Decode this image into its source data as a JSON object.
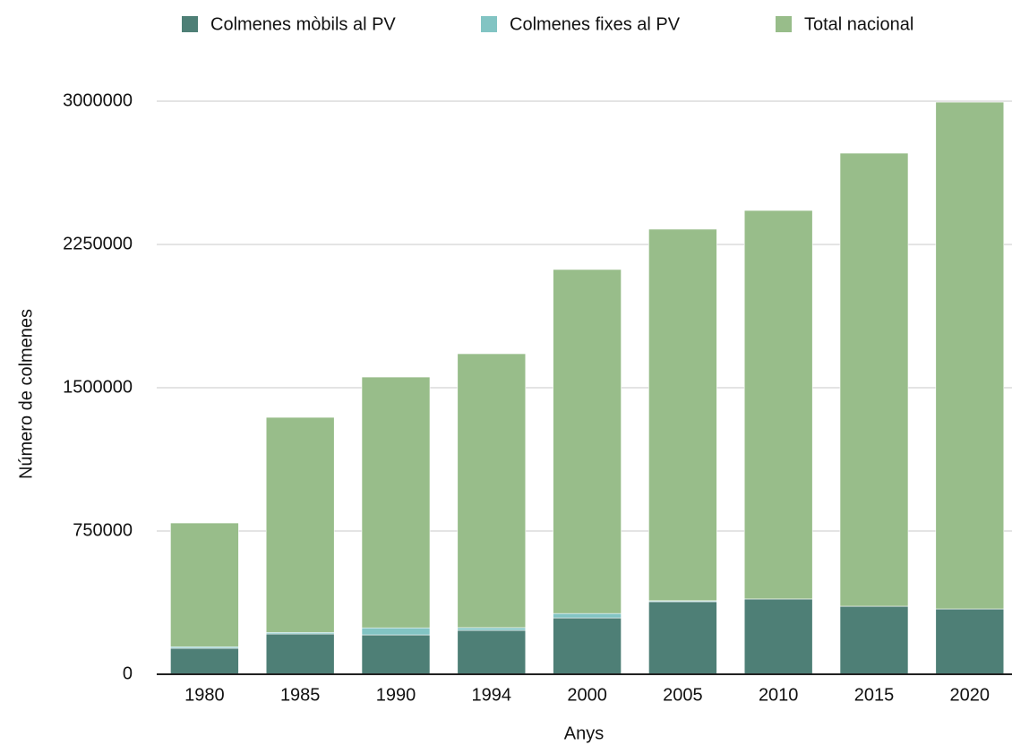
{
  "chart_data": {
    "type": "stacked_bar",
    "x_label": "Anys",
    "y_label": "Número de colmenes",
    "categories": [
      "1980",
      "1985",
      "1990",
      "1994",
      "2000",
      "2005",
      "2010",
      "2015",
      "2020"
    ],
    "series": [
      {
        "name": "Colmenes mòbils al PV",
        "color": "#4e7f76",
        "values": [
          136000,
          211000,
          206000,
          230000,
          295000,
          380000,
          394000,
          356000,
          342000
        ]
      },
      {
        "name": "Colmenes fixes al PV",
        "color": "#82c4c3",
        "values": [
          8000,
          8000,
          37000,
          14000,
          23000,
          5000,
          0,
          0,
          0
        ]
      },
      {
        "name": "Total nacional",
        "color": "#98bd8a",
        "values": [
          648000,
          1126000,
          1313000,
          1434000,
          1801000,
          1945000,
          2034000,
          2372000,
          2653000
        ]
      }
    ],
    "ylim": [
      0,
      3000000
    ],
    "yticks": [
      0,
      750000,
      1500000,
      2250000,
      3000000
    ],
    "grid": true,
    "legend": "top"
  }
}
